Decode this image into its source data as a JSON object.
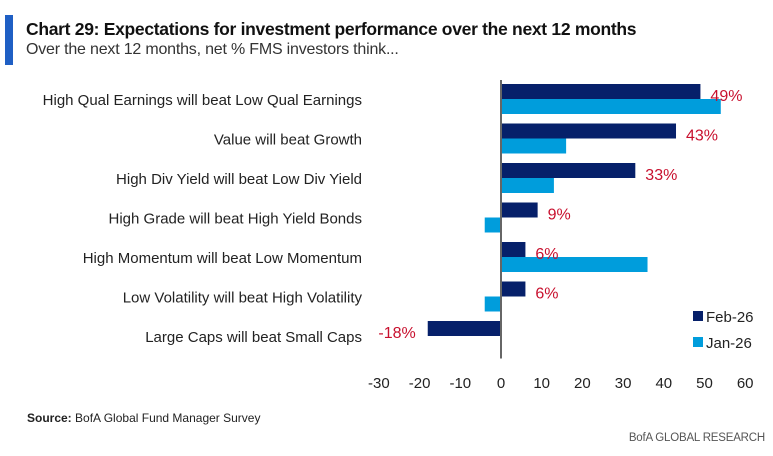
{
  "header": {
    "title": "Chart 29: Expectations for investment performance over the next 12 months",
    "subtitle": "Over the next 12 months, net % FMS investors think..."
  },
  "footer": {
    "source_label": "Source:",
    "source_text": "BofA Global Fund Manager Survey",
    "brand": "BofA GLOBAL RESEARCH"
  },
  "colors": {
    "feb": "#06206a",
    "jan": "#009ddc",
    "label": "#c8102e",
    "accent": "#1f5fc4"
  },
  "chart_data": {
    "type": "bar",
    "orientation": "horizontal",
    "title": "Chart 29: Expectations for investment performance over the next 12 months",
    "subtitle": "Over the next 12 months, net % FMS investors think...",
    "xlabel": "",
    "ylabel": "",
    "xlim": [
      -30,
      60
    ],
    "xticks": [
      -30,
      -20,
      -10,
      0,
      10,
      20,
      30,
      40,
      50,
      60
    ],
    "grid": false,
    "legend_position": "bottom-right",
    "categories": [
      "High Qual Earnings will beat Low Qual Earnings",
      "Value will beat Growth",
      "High Div Yield will beat Low Div Yield",
      "High Grade will beat High Yield Bonds",
      "High Momentum will beat Low Momentum",
      "Low Volatility will beat High Volatility",
      "Large Caps will beat Small Caps"
    ],
    "series": [
      {
        "name": "Feb-26",
        "values": [
          49,
          43,
          33,
          9,
          6,
          6,
          -18
        ]
      },
      {
        "name": "Jan-26",
        "values": [
          54,
          16,
          13,
          -4,
          36,
          -4,
          0
        ]
      }
    ],
    "data_labels": [
      "49%",
      "43%",
      "33%",
      "9%",
      "6%",
      "6%",
      "-18%"
    ]
  }
}
